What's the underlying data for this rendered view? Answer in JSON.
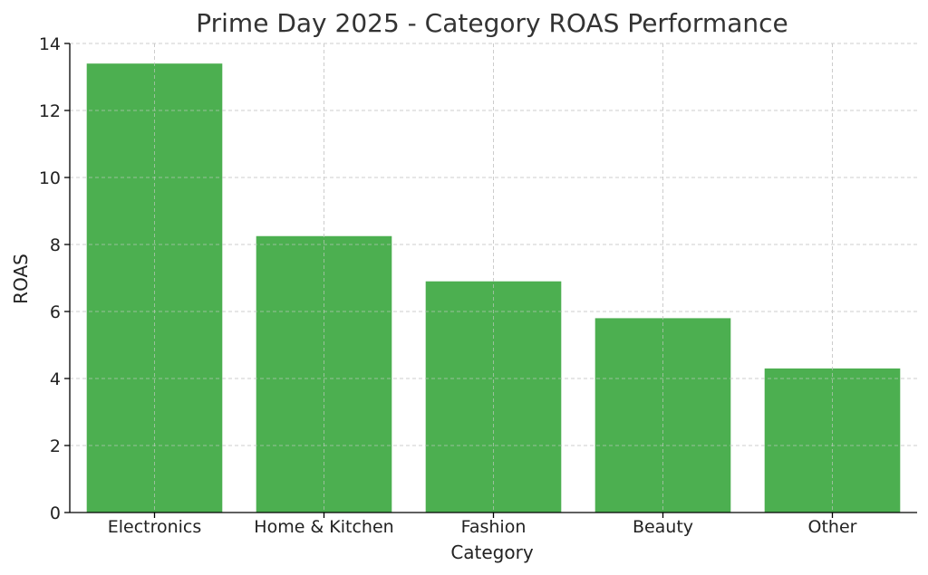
{
  "chart_data": {
    "type": "bar",
    "title": "Prime Day 2025 - Category ROAS Performance",
    "xlabel": "Category",
    "ylabel": "ROAS",
    "categories": [
      "Electronics",
      "Home & Kitchen",
      "Fashion",
      "Beauty",
      "Other"
    ],
    "values": [
      13.4,
      8.25,
      6.9,
      5.8,
      4.3
    ],
    "ylim": [
      0,
      14
    ],
    "yticks": [
      "0",
      "2",
      "4",
      "6",
      "8",
      "10",
      "12",
      "14"
    ],
    "grid": true,
    "bar_color": "#4caf50"
  }
}
